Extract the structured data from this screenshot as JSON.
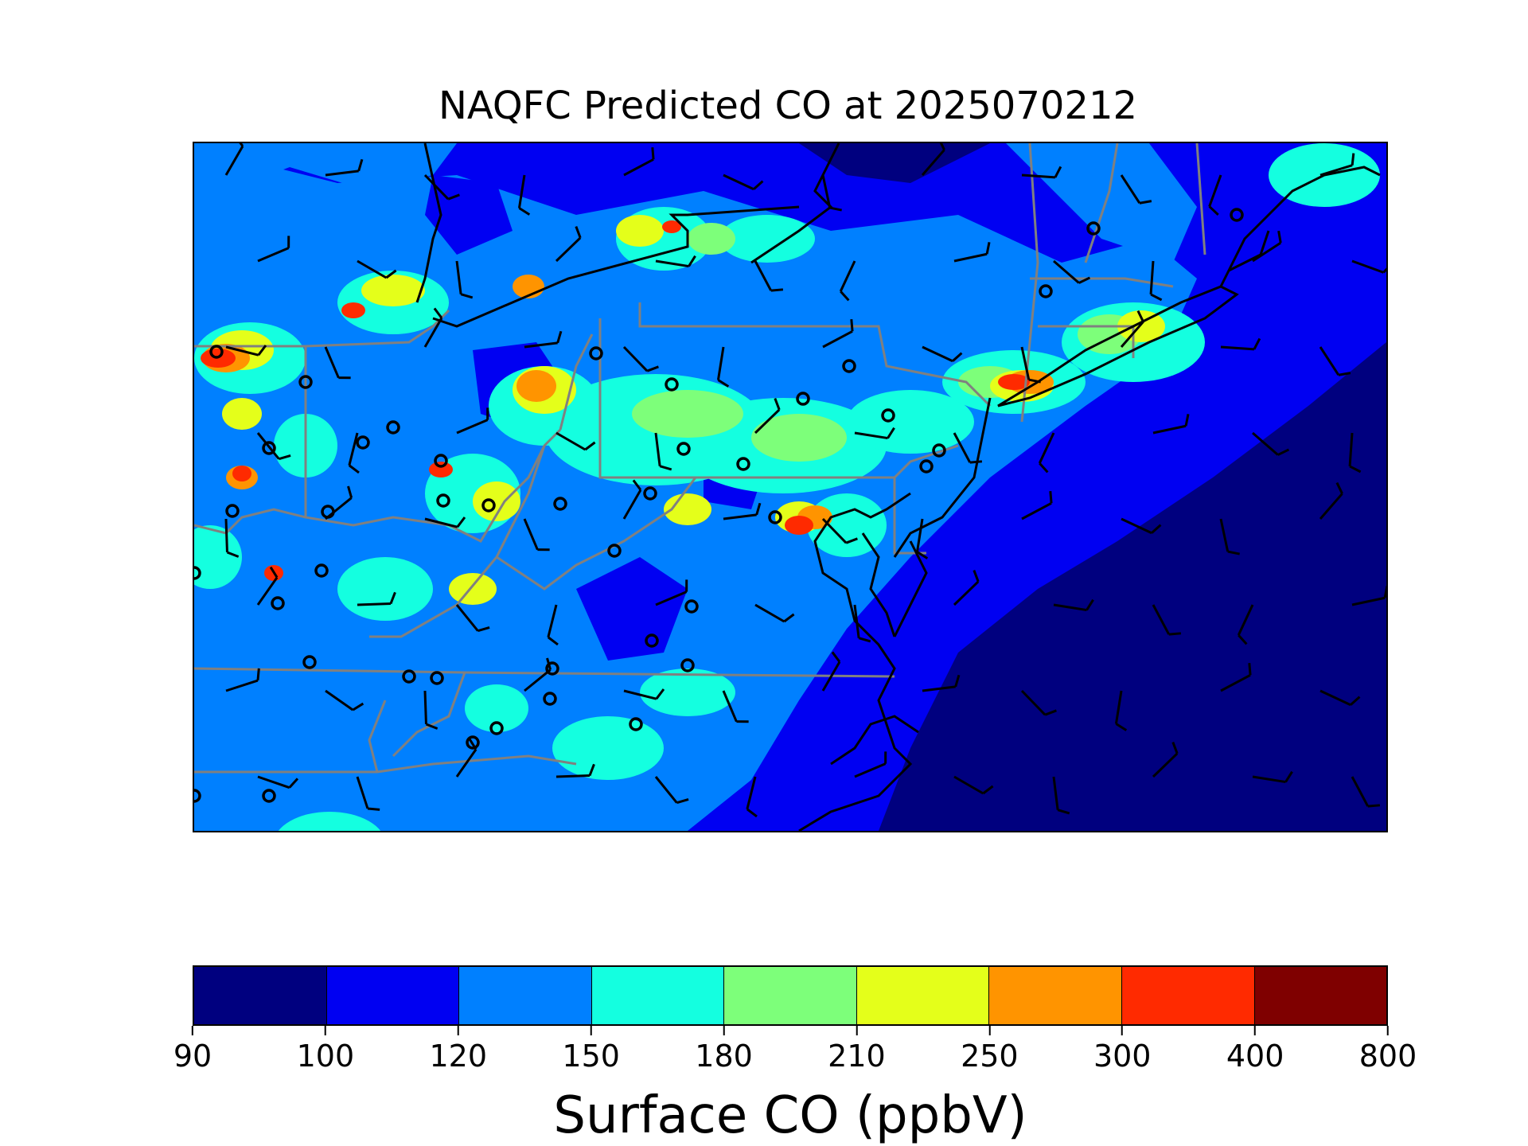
{
  "title": "NAQFC Predicted CO at 2025070212",
  "map": {
    "region": "Mid-Atlantic and Northeast United States",
    "field": "Surface CO",
    "background_color": "#0000f2",
    "ocean_color": "#00007f",
    "state_border_color": "#808080",
    "coast_color": "#000000",
    "markers": "site markers (open circles)",
    "barbs": "wind barbs"
  },
  "colorbar": {
    "label": "Surface CO (ppbV)",
    "ticks": [
      "90",
      "100",
      "120",
      "150",
      "180",
      "210",
      "250",
      "300",
      "400",
      "800"
    ],
    "colors": [
      "#00007f",
      "#0000f2",
      "#0080ff",
      "#14ffe0",
      "#7dff7a",
      "#e4ff1a",
      "#ff9400",
      "#ff2a00",
      "#7f0000"
    ]
  }
}
